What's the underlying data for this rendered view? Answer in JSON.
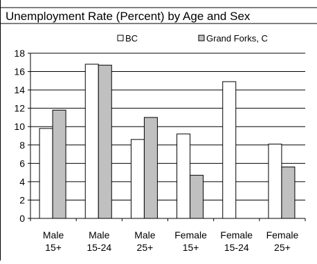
{
  "colors": {
    "bc_fill": "#ffffff",
    "grand_forks_fill": "#c0c0c0",
    "bar_stroke": "#000000",
    "grid": "#000000",
    "background": "#ffffff"
  },
  "chart_data": {
    "type": "bar",
    "title": "Unemployment Rate (Percent) by Age and Sex",
    "categories": [
      [
        "Male",
        "15+"
      ],
      [
        "Male",
        "15-24"
      ],
      [
        "Male",
        "25+"
      ],
      [
        "Female",
        "15+"
      ],
      [
        "Female",
        "15-24"
      ],
      [
        "Female",
        "25+"
      ]
    ],
    "series": [
      {
        "name": "BC",
        "values": [
          9.8,
          16.8,
          8.6,
          9.2,
          14.9,
          8.1
        ]
      },
      {
        "name": "Grand Forks, C",
        "values": [
          11.8,
          16.7,
          11.0,
          4.7,
          null,
          5.6
        ]
      }
    ],
    "ylim": [
      0,
      18
    ],
    "yticks": [
      0,
      2,
      4,
      6,
      8,
      10,
      12,
      14,
      16,
      18
    ],
    "grid": true,
    "legend_position": "top"
  }
}
